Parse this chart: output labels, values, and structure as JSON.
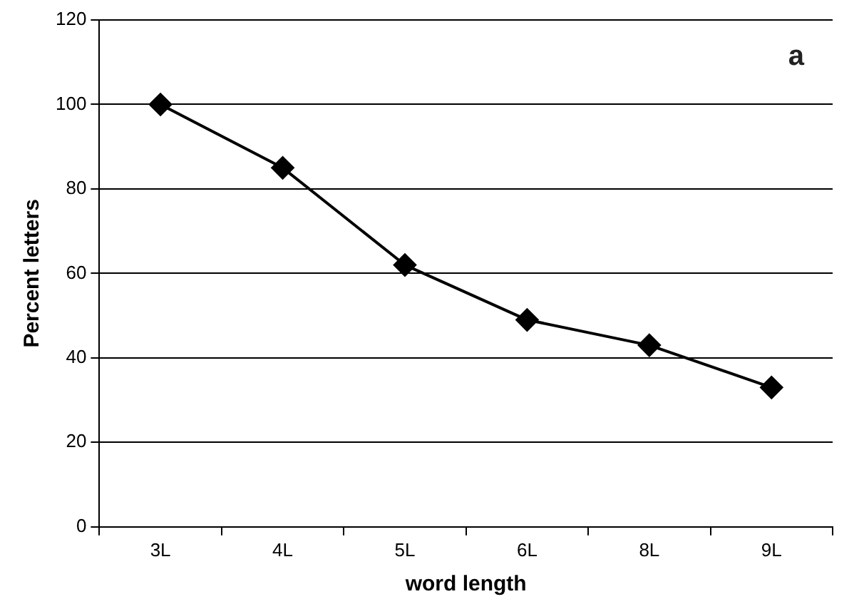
{
  "chart_data": {
    "type": "line",
    "xlabel": "word length",
    "ylabel": "Percent letters",
    "categories": [
      "3L",
      "4L",
      "5L",
      "6L",
      "8L",
      "9L"
    ],
    "series": [
      {
        "color": "#000000",
        "values": [
          100,
          85,
          62,
          49,
          43,
          33
        ]
      }
    ],
    "ylim": [
      0,
      120
    ],
    "yticks": [
      0,
      20,
      40,
      60,
      80,
      100,
      120
    ],
    "grid": "y",
    "legend": false,
    "marker": "diamond",
    "line_style": "solid",
    "annotations": [
      "a"
    ]
  }
}
